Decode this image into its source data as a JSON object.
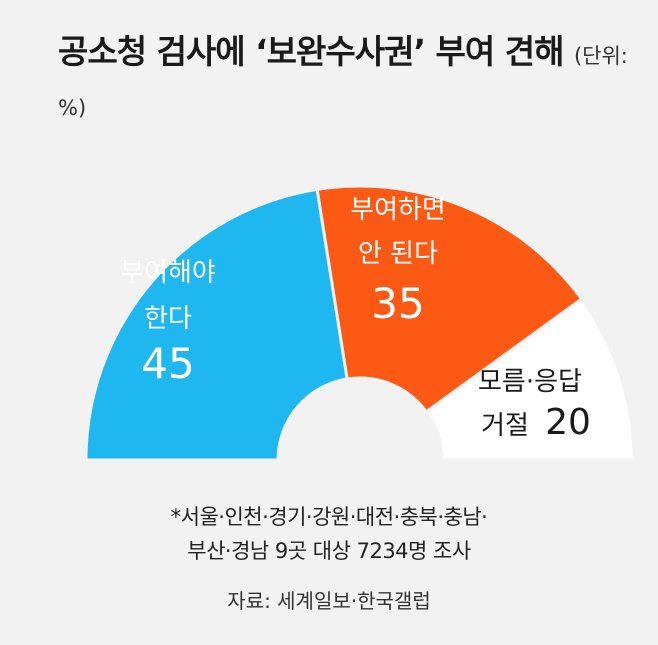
{
  "title": "공소청 검사에 ‘보완수사권’ 부여 견해",
  "unit": "(단위: %)",
  "chart_data": {
    "type": "pie",
    "subtype": "semicircle-donut",
    "title": "공소청 검사에 ‘보완수사권’ 부여 견해",
    "unit": "(단위: %)",
    "slices": [
      {
        "label_lines": [
          "부여해야",
          "한다"
        ],
        "value": 45,
        "color": "#1fb7f0",
        "text_color": "#ffffff"
      },
      {
        "label_lines": [
          "부여하면",
          "안 된다"
        ],
        "value": 35,
        "color": "#fc5a14",
        "text_color": "#ffffff"
      },
      {
        "label_lines": [
          "모름·응답",
          "거절"
        ],
        "value": 20,
        "color": "#ffffff",
        "text_color": "#1a1a1a"
      }
    ]
  },
  "notes": {
    "line1": "*서울·인천·경기·강원·대전·충북·충남·",
    "line2": "부산·경남 9곳 대상 7234명 조사"
  },
  "source": "자료: 세계일보·한국갤럽"
}
